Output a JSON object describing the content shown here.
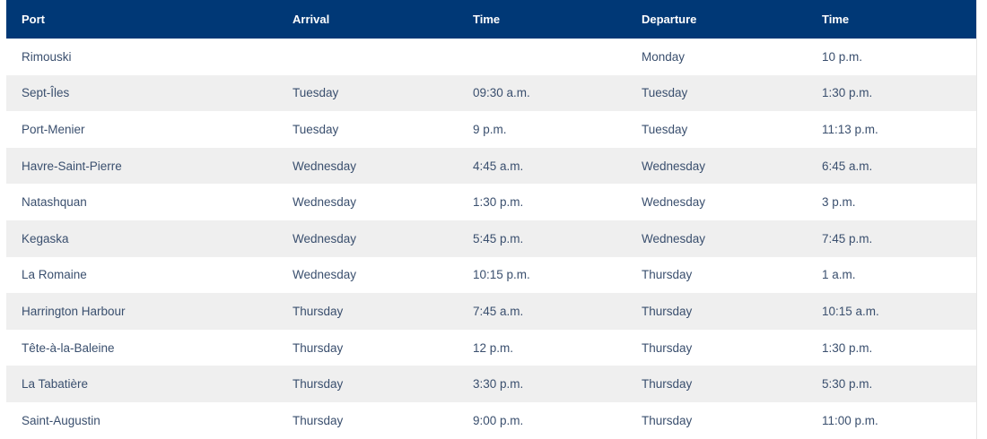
{
  "colors": {
    "header_bg": "#003876",
    "header_text": "#ffffff",
    "row_stripe": "#efefef",
    "text": "#3a4f6e"
  },
  "headers": [
    "Port",
    "Arrival",
    "Time",
    "Departure",
    "Time"
  ],
  "rows": [
    [
      "Rimouski",
      "",
      "",
      "Monday",
      "10 p.m."
    ],
    [
      "Sept-Îles",
      "Tuesday",
      "09:30 a.m.",
      "Tuesday",
      "1:30 p.m."
    ],
    [
      "Port-Menier",
      "Tuesday",
      "9 p.m.",
      "Tuesday",
      "11:13 p.m."
    ],
    [
      "Havre-Saint-Pierre",
      "Wednesday",
      "4:45 a.m.",
      "Wednesday",
      "6:45 a.m."
    ],
    [
      "Natashquan",
      "Wednesday",
      "1:30 p.m.",
      "Wednesday",
      "3 p.m."
    ],
    [
      "Kegaska",
      "Wednesday",
      "5:45 p.m.",
      "Wednesday",
      "7:45 p.m."
    ],
    [
      "La Romaine",
      "Wednesday",
      "10:15 p.m.",
      "Thursday",
      "1 a.m."
    ],
    [
      "Harrington Harbour",
      "Thursday",
      "7:45 a.m.",
      "Thursday",
      "10:15 a.m."
    ],
    [
      "Tête-à-la-Baleine",
      "Thursday",
      "12 p.m.",
      "Thursday",
      "1:30 p.m."
    ],
    [
      "La Tabatière",
      "Thursday",
      "3:30 p.m.",
      "Thursday",
      "5:30 p.m."
    ],
    [
      "Saint-Augustin",
      "Thursday",
      "9:00 p.m.",
      "Thursday",
      "11:00 p.m."
    ]
  ]
}
